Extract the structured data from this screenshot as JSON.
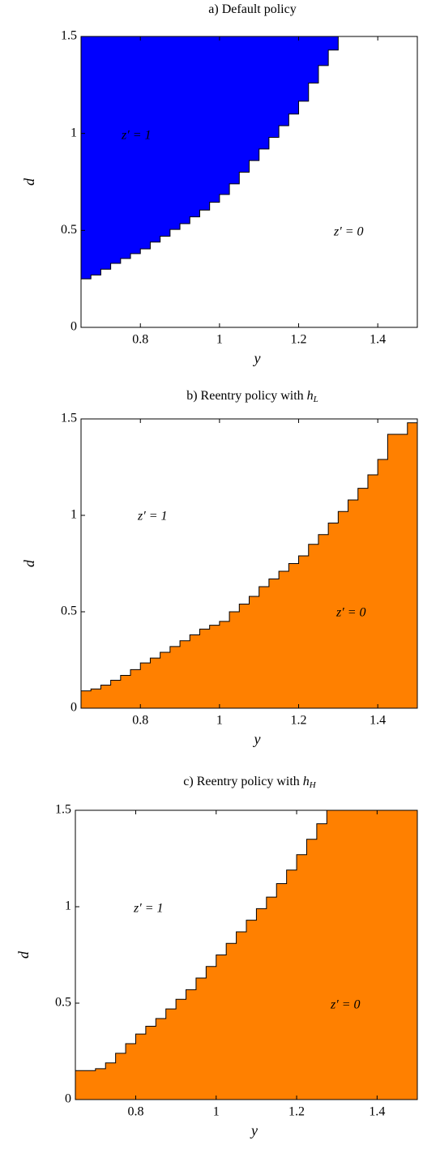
{
  "chart_data": [
    {
      "type": "step-area",
      "title": "a) Default policy",
      "xlabel": "y",
      "ylabel": "d",
      "xlim": [
        0.65,
        1.5
      ],
      "ylim": [
        0,
        1.5
      ],
      "xticks": [
        0.8,
        1,
        1.2,
        1.4
      ],
      "yticks": [
        0,
        0.5,
        1,
        1.5
      ],
      "fill_side": "above",
      "color": "#0000ff",
      "x": [
        0.65,
        0.675,
        0.7,
        0.725,
        0.75,
        0.775,
        0.8,
        0.825,
        0.85,
        0.875,
        0.9,
        0.925,
        0.95,
        0.975,
        1.0,
        1.025,
        1.05,
        1.075,
        1.1,
        1.125,
        1.15,
        1.175,
        1.2,
        1.225,
        1.25,
        1.275,
        1.3
      ],
      "values": [
        0.25,
        0.27,
        0.3,
        0.33,
        0.355,
        0.38,
        0.405,
        0.44,
        0.47,
        0.505,
        0.535,
        0.57,
        0.605,
        0.645,
        0.685,
        0.74,
        0.8,
        0.86,
        0.92,
        0.98,
        1.04,
        1.1,
        1.166,
        1.26,
        1.35,
        1.43,
        1.5
      ],
      "annotations": [
        "z′ = 1",
        "z′ = 0"
      ]
    },
    {
      "type": "step-area",
      "title": "b) Reentry policy with",
      "title_symbol": "h",
      "title_subscript": "L",
      "xlabel": "y",
      "ylabel": "d",
      "xlim": [
        0.65,
        1.5
      ],
      "ylim": [
        0,
        1.5
      ],
      "xticks": [
        0.8,
        1,
        1.2,
        1.4
      ],
      "yticks": [
        0,
        0.5,
        1,
        1.5
      ],
      "fill_side": "below",
      "color": "#ff8000",
      "x": [
        0.65,
        0.675,
        0.7,
        0.725,
        0.75,
        0.775,
        0.8,
        0.825,
        0.85,
        0.875,
        0.9,
        0.925,
        0.95,
        0.975,
        1.0,
        1.025,
        1.05,
        1.075,
        1.1,
        1.125,
        1.15,
        1.175,
        1.2,
        1.225,
        1.25,
        1.275,
        1.3,
        1.325,
        1.35,
        1.375,
        1.4,
        1.425,
        1.45,
        1.475
      ],
      "values": [
        0.09,
        0.1,
        0.12,
        0.145,
        0.17,
        0.2,
        0.235,
        0.26,
        0.29,
        0.32,
        0.35,
        0.38,
        0.41,
        0.43,
        0.45,
        0.5,
        0.54,
        0.58,
        0.63,
        0.67,
        0.71,
        0.75,
        0.79,
        0.85,
        0.9,
        0.96,
        1.02,
        1.08,
        1.14,
        1.21,
        1.29,
        1.42,
        1.42,
        1.48
      ],
      "annotations": [
        "z′ = 1",
        "z′ = 0"
      ]
    },
    {
      "type": "step-area",
      "title": "c) Reentry policy with",
      "title_symbol": "h",
      "title_subscript": "H",
      "xlabel": "y",
      "ylabel": "d",
      "xlim": [
        0.65,
        1.5
      ],
      "ylim": [
        0,
        1.5
      ],
      "xticks": [
        0.8,
        1,
        1.2,
        1.4
      ],
      "yticks": [
        0,
        0.5,
        1,
        1.5
      ],
      "fill_side": "below",
      "color": "#ff8000",
      "x": [
        0.65,
        0.675,
        0.7,
        0.725,
        0.75,
        0.775,
        0.8,
        0.825,
        0.85,
        0.875,
        0.9,
        0.925,
        0.95,
        0.975,
        1.0,
        1.025,
        1.05,
        1.075,
        1.1,
        1.125,
        1.15,
        1.175,
        1.2,
        1.225,
        1.25,
        1.275
      ],
      "values": [
        0.15,
        0.15,
        0.16,
        0.19,
        0.24,
        0.29,
        0.34,
        0.38,
        0.42,
        0.47,
        0.52,
        0.57,
        0.63,
        0.69,
        0.75,
        0.81,
        0.87,
        0.93,
        0.99,
        1.05,
        1.12,
        1.19,
        1.27,
        1.35,
        1.43,
        1.5
      ],
      "annotations": [
        "z′ = 1",
        "z′ = 0"
      ]
    }
  ]
}
